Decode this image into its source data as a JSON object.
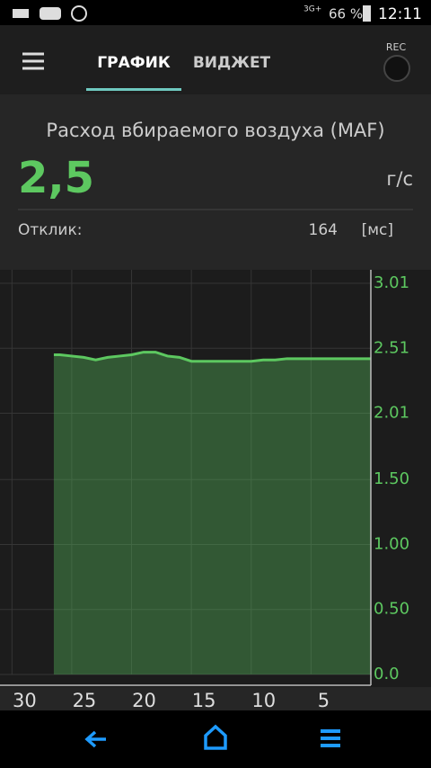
{
  "status": {
    "network": "3G+",
    "battery": "66 %",
    "time": "12:11"
  },
  "toolbar": {
    "tabs": [
      "ГРАФИК",
      "ВИДЖЕТ"
    ],
    "rec": "REC"
  },
  "sensor": {
    "title": "Расход вбираемого воздуха (MAF)",
    "value": "2,5",
    "unit": "г/с",
    "response_label": "Отклик:",
    "response_value": "164",
    "response_unit": "[мс]"
  },
  "chart_data": {
    "type": "area",
    "color": "#5dc860",
    "x": [
      26.5,
      26,
      25,
      24,
      23,
      22,
      21,
      20,
      19,
      18,
      17,
      16,
      15,
      14,
      13,
      12,
      11,
      10,
      9,
      8,
      7,
      6,
      5,
      4,
      3,
      2,
      1,
      0
    ],
    "values": [
      2.46,
      2.46,
      2.45,
      2.44,
      2.42,
      2.44,
      2.45,
      2.46,
      2.48,
      2.48,
      2.45,
      2.44,
      2.41,
      2.41,
      2.41,
      2.41,
      2.41,
      2.41,
      2.42,
      2.42,
      2.43,
      2.43,
      2.43,
      2.43,
      2.43,
      2.43,
      2.43,
      2.43
    ],
    "xlim": [
      31,
      0
    ],
    "xticks": [
      30,
      25,
      20,
      15,
      10,
      5
    ],
    "ylim": [
      0,
      3.01
    ],
    "yticks": [
      {
        "value": 0,
        "label": "0.0"
      },
      {
        "value": 0.5,
        "label": "0.50"
      },
      {
        "value": 1,
        "label": "1.00"
      },
      {
        "value": 1.5,
        "label": "1.50"
      },
      2.01,
      2.51,
      3.01
    ],
    "grid": true
  }
}
